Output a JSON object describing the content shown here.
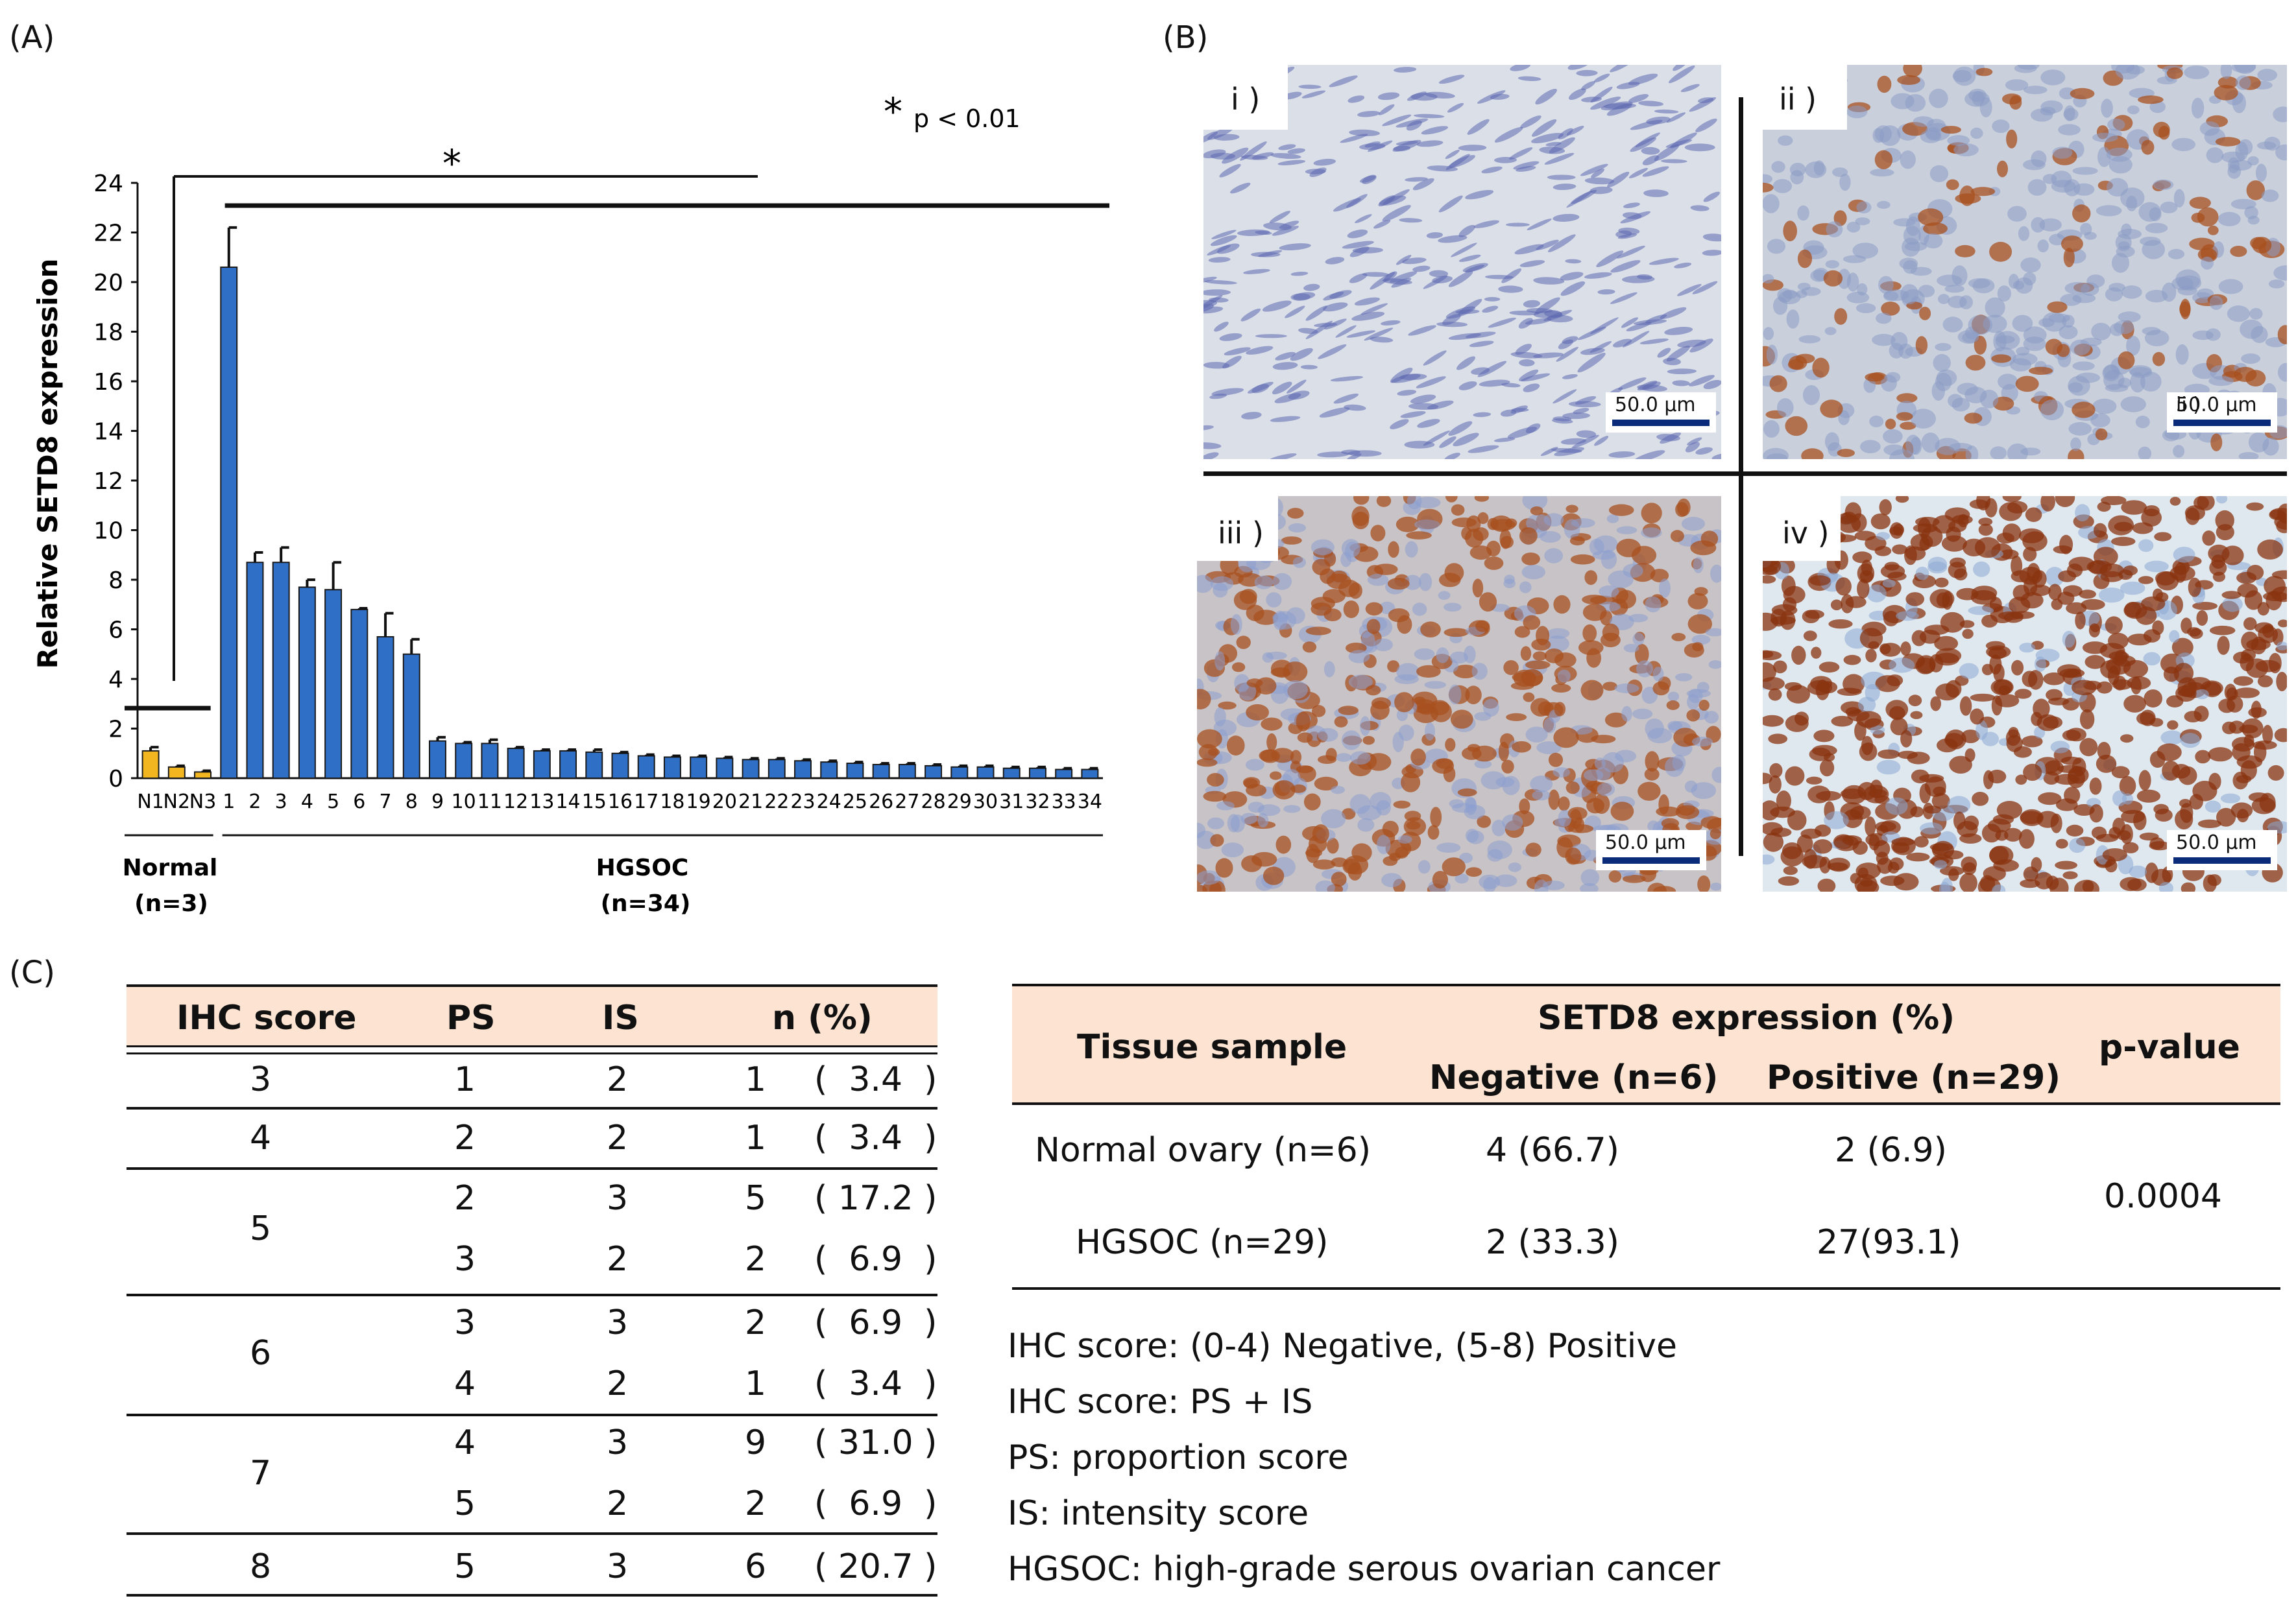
{
  "colors": {
    "normal_bar": "#f2b620",
    "hgsoc_bar": "#2f6fc6",
    "table_header_bg": "#fde3d2",
    "stain_brown": "#a8501f",
    "stain_blue": "#8d9fd0"
  },
  "panels": {
    "a": "(A)",
    "b": "(B)",
    "c": "(C)"
  },
  "chart_data": {
    "type": "bar",
    "ylabel": "Relative SETD8 expression",
    "ylim": [
      0,
      24
    ],
    "yticks": [
      0,
      2,
      4,
      6,
      8,
      10,
      12,
      14,
      16,
      18,
      20,
      22,
      24
    ],
    "categories": [
      "N1",
      "N2",
      "N3",
      "1",
      "2",
      "3",
      "4",
      "5",
      "6",
      "7",
      "8",
      "9",
      "10",
      "11",
      "12",
      "13",
      "14",
      "15",
      "16",
      "17",
      "18",
      "19",
      "20",
      "21",
      "22",
      "23",
      "24",
      "25",
      "26",
      "27",
      "28",
      "29",
      "30",
      "31",
      "32",
      "33",
      "34"
    ],
    "values": [
      1.1,
      0.45,
      0.25,
      20.6,
      8.7,
      8.7,
      7.7,
      7.6,
      6.8,
      5.7,
      5.0,
      1.5,
      1.4,
      1.4,
      1.2,
      1.1,
      1.1,
      1.05,
      1.0,
      0.9,
      0.85,
      0.85,
      0.8,
      0.75,
      0.75,
      0.7,
      0.65,
      0.6,
      0.55,
      0.55,
      0.5,
      0.45,
      0.45,
      0.4,
      0.4,
      0.35,
      0.35
    ],
    "errors": [
      0.15,
      0.05,
      0.05,
      1.6,
      0.4,
      0.6,
      0.3,
      1.1,
      0.05,
      0.95,
      0.6,
      0.15,
      0.05,
      0.15,
      0.05,
      0.05,
      0.05,
      0.1,
      0.05,
      0.05,
      0.05,
      0.05,
      0.05,
      0.05,
      0.05,
      0.05,
      0.05,
      0.05,
      0.05,
      0.05,
      0.05,
      0.05,
      0.05,
      0.05,
      0.05,
      0.05,
      0.05
    ],
    "groups": [
      {
        "name": "Normal",
        "n": "(n=3)"
      },
      {
        "name": "HGSOC",
        "n": "(n=34)"
      }
    ],
    "significance_mark": "*",
    "significance_legend": "p < 0.01"
  },
  "micrographs": [
    {
      "label": "i )",
      "scale": "50.0 µm",
      "stain": "none"
    },
    {
      "label": "ii )",
      "scale": "50.0 µm",
      "stain": "weak"
    },
    {
      "label": "iii )",
      "scale": "50.0 µm",
      "stain": "moderate"
    },
    {
      "label": "iv )",
      "scale": "50.0 µm",
      "stain": "strong"
    }
  ],
  "ihc_table": {
    "headers": [
      "IHC score",
      "PS",
      "IS",
      "n (%)"
    ],
    "rows": [
      {
        "score": "3",
        "ps": "1",
        "is": "2",
        "n": "1",
        "pct": "(  3.4  )"
      },
      {
        "score": "4",
        "ps": "2",
        "is": "2",
        "n": "1",
        "pct": "(  3.4  )"
      },
      {
        "score": "5",
        "ps": "2",
        "is": "3",
        "n": "5",
        "pct": "( 17.2 )"
      },
      {
        "score": "",
        "ps": "3",
        "is": "2",
        "n": "2",
        "pct": "(  6.9  )"
      },
      {
        "score": "6",
        "ps": "3",
        "is": "3",
        "n": "2",
        "pct": "(  6.9  )"
      },
      {
        "score": "",
        "ps": "4",
        "is": "2",
        "n": "1",
        "pct": "(  3.4  )"
      },
      {
        "score": "7",
        "ps": "4",
        "is": "3",
        "n": "9",
        "pct": "( 31.0 )"
      },
      {
        "score": "",
        "ps": "5",
        "is": "2",
        "n": "2",
        "pct": "(  6.9  )"
      },
      {
        "score": "8",
        "ps": "5",
        "is": "3",
        "n": "6",
        "pct": "( 20.7 )"
      }
    ]
  },
  "expr_table": {
    "tissue_header": "Tissue sample",
    "expr_header": "SETD8 expression (%)",
    "neg_header": "Negative (n=6)",
    "pos_header": "Positive (n=29)",
    "p_header": "p-value",
    "rows": [
      {
        "tissue": "Normal ovary (n=6)",
        "neg": "4 (66.7)",
        "pos": "2 (6.9)"
      },
      {
        "tissue": "HGSOC (n=29)",
        "neg": "2 (33.3)",
        "pos": "27(93.1)"
      }
    ],
    "p_value": "0.0004"
  },
  "notes": [
    "IHC score: (0-4) Negative, (5-8) Positive",
    "IHC score: PS + IS",
    "PS: proportion score",
    "IS: intensity score",
    "HGSOC: high-grade serous ovarian cancer"
  ]
}
